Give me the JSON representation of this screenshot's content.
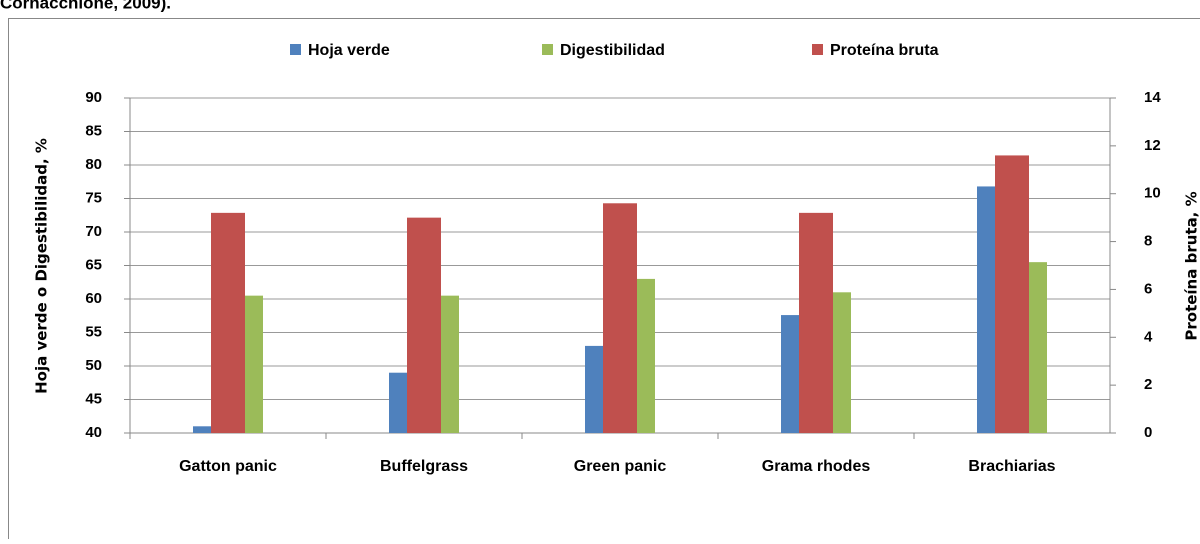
{
  "caption": "Cornacchione, 2009).",
  "chart_data": {
    "type": "bar",
    "ylabel": "Hoja verde o Digestibilidad, %",
    "y2label": "Proteína bruta, %",
    "categories": [
      "Gatton panic",
      "Buffelgrass",
      "Green panic",
      "Grama rhodes",
      "Brachiarias"
    ],
    "series": [
      {
        "name": "Hoja verde",
        "color": "#4f81bd",
        "values": [
          41,
          49,
          53,
          57.6,
          76.8
        ]
      },
      {
        "name": "Digestibilidad",
        "color": "#9bbb59",
        "values": [
          60.5,
          60.5,
          63,
          61,
          65.5
        ]
      },
      {
        "name": "Proteína bruta",
        "color": "#c0504d",
        "axis": "y2",
        "values": [
          9.2,
          9.0,
          9.6,
          9.2,
          11.6
        ]
      }
    ],
    "ylim": [
      40,
      90
    ],
    "yticks": [
      40,
      45,
      50,
      55,
      60,
      65,
      70,
      75,
      80,
      85,
      90
    ],
    "y2lim": [
      0,
      14
    ],
    "y2ticks": [
      0,
      2,
      4,
      6,
      8,
      10,
      12,
      14
    ],
    "grid": true,
    "legend": "top"
  }
}
